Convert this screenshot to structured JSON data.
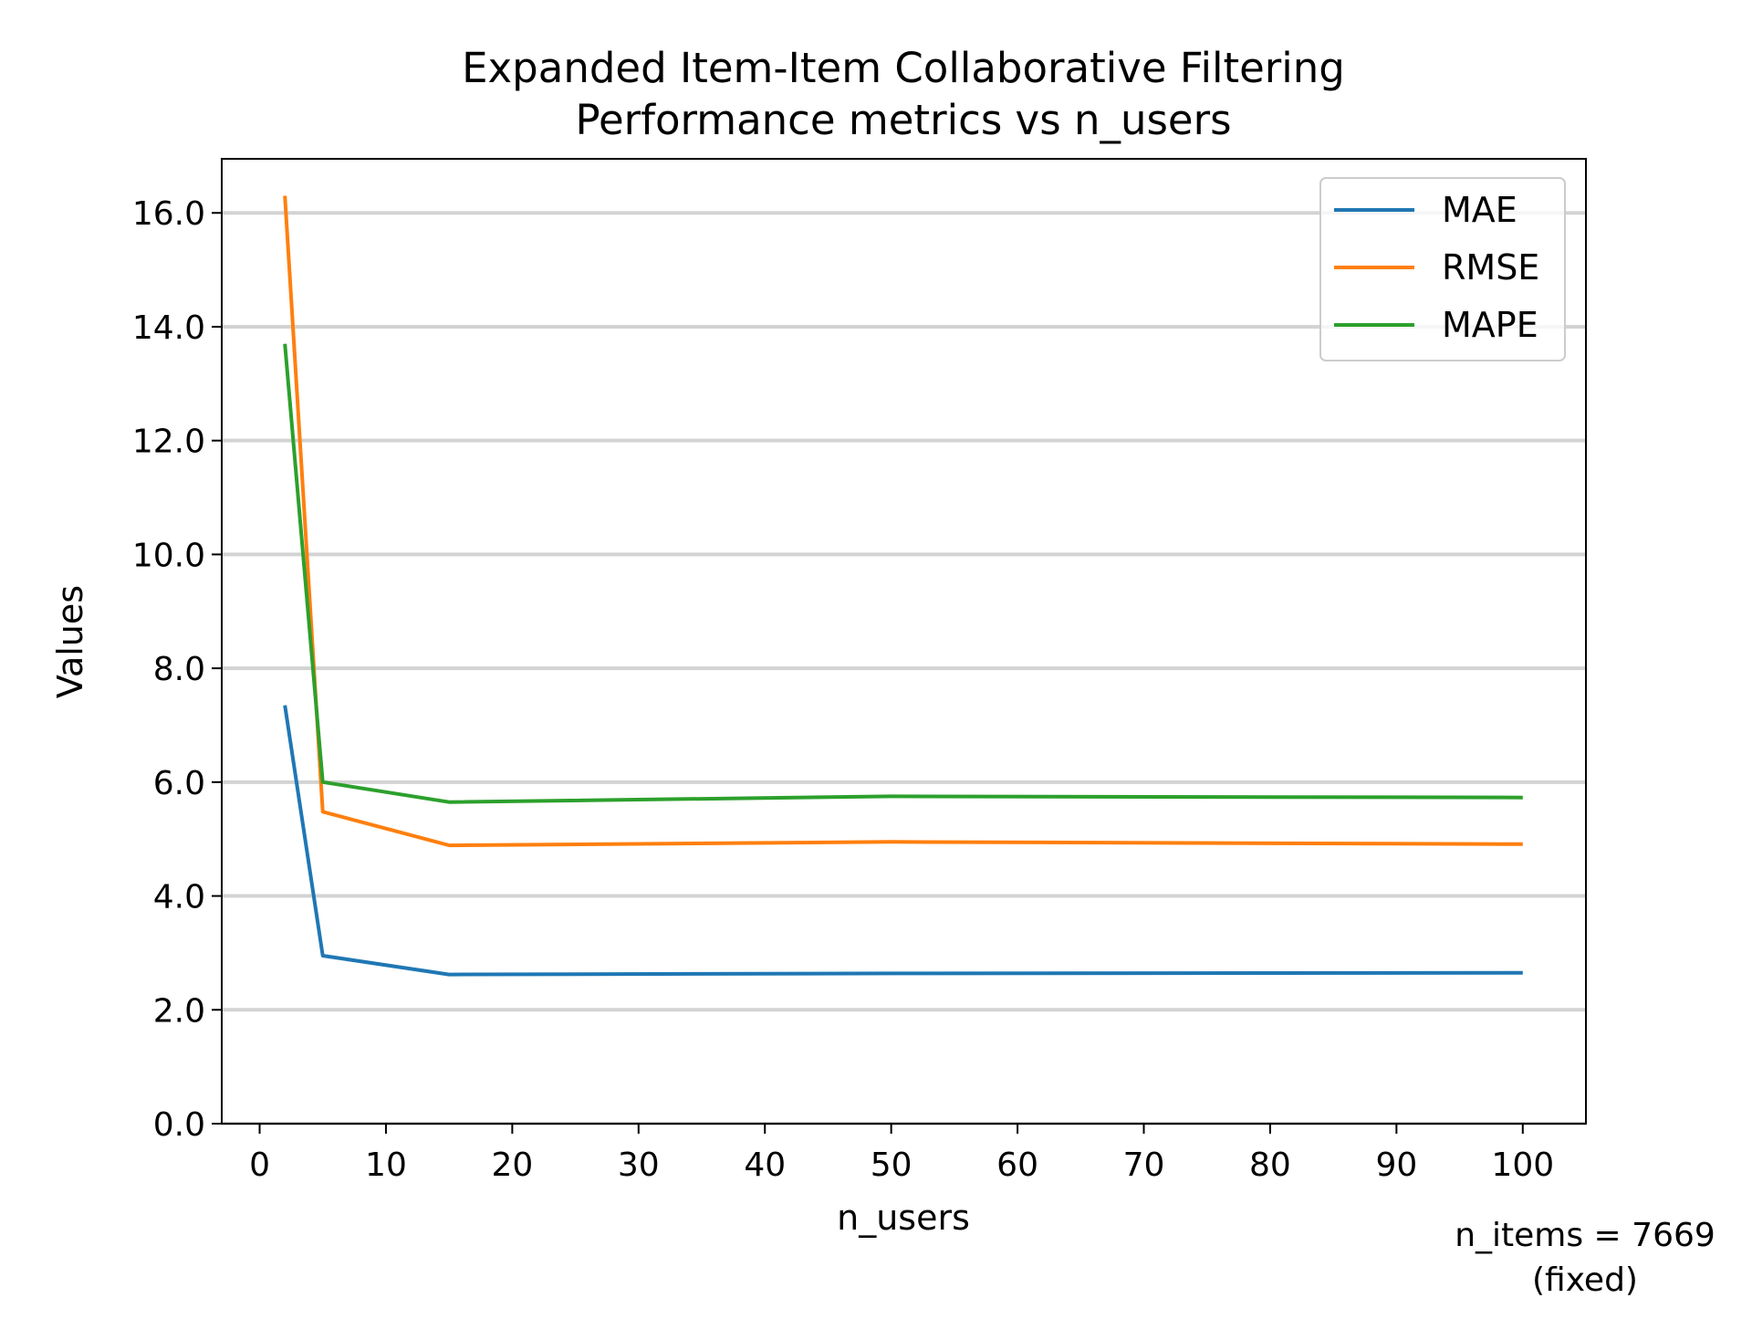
{
  "chart_data": {
    "type": "line",
    "title": "Expanded Item-Item Collaborative Filtering",
    "subtitle": "Performance metrics vs n_users",
    "xlabel": "n_users",
    "ylabel": "Values",
    "xlim": [
      -3,
      105
    ],
    "ylim": [
      0,
      16.95
    ],
    "xticks": [
      0,
      10,
      20,
      30,
      40,
      50,
      60,
      70,
      80,
      90,
      100
    ],
    "yticks": [
      0.0,
      2.0,
      4.0,
      6.0,
      8.0,
      10.0,
      12.0,
      14.0,
      16.0
    ],
    "xtick_labels": [
      "0",
      "10",
      "20",
      "30",
      "40",
      "50",
      "60",
      "70",
      "80",
      "90",
      "100"
    ],
    "ytick_labels": [
      "0.0",
      "2.0",
      "4.0",
      "6.0",
      "8.0",
      "10.0",
      "12.0",
      "14.0",
      "16.0"
    ],
    "grid": "horizontal",
    "legend_position": "top-right",
    "x": [
      2,
      5,
      15,
      50,
      100
    ],
    "series": [
      {
        "name": "MAE",
        "color": "#1f77b4",
        "values": [
          7.35,
          2.95,
          2.62,
          2.64,
          2.65
        ]
      },
      {
        "name": "RMSE",
        "color": "#ff7f0e",
        "values": [
          16.3,
          5.48,
          4.89,
          4.95,
          4.91
        ]
      },
      {
        "name": "MAPE",
        "color": "#2ca02c",
        "values": [
          13.7,
          6.0,
          5.65,
          5.75,
          5.73
        ]
      }
    ],
    "annotation": {
      "line1": "n_items = 7669",
      "line2": "(fixed)"
    }
  }
}
